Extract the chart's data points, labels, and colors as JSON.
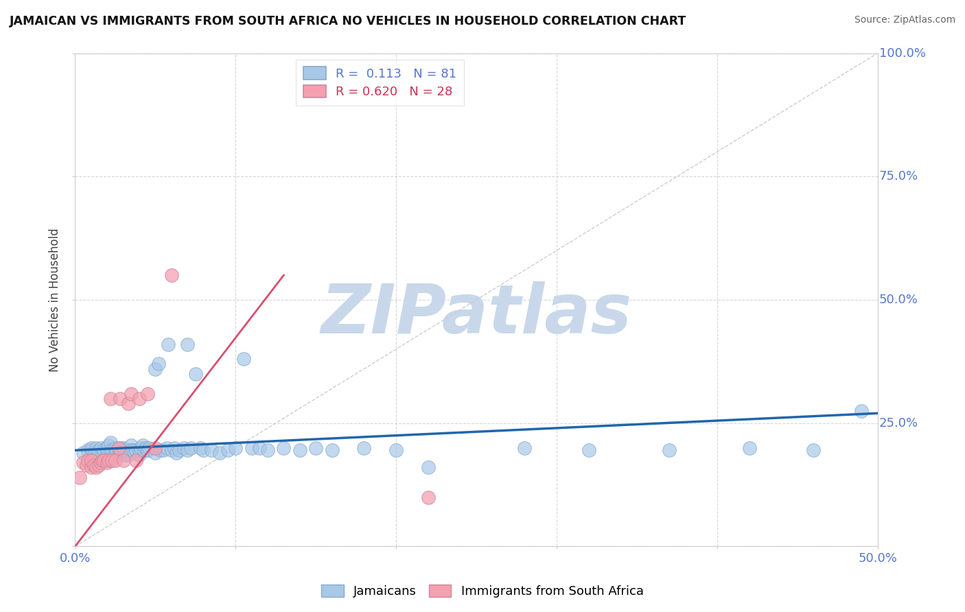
{
  "title": "JAMAICAN VS IMMIGRANTS FROM SOUTH AFRICA NO VEHICLES IN HOUSEHOLD CORRELATION CHART",
  "source_text": "Source: ZipAtlas.com",
  "ylabel": "No Vehicles in Household",
  "xlim": [
    0.0,
    0.5
  ],
  "ylim": [
    0.0,
    1.0
  ],
  "blue_R": 0.113,
  "blue_N": 81,
  "pink_R": 0.62,
  "pink_N": 28,
  "blue_color": "#a8c8e8",
  "pink_color": "#f4a0b0",
  "blue_line_color": "#2166ac",
  "pink_line_color": "#d94f6e",
  "ref_line_color": "#c8c8c8",
  "watermark": "ZIPatlas",
  "watermark_color": "#c8d8ea",
  "legend_label_blue": "Jamaicans",
  "legend_label_pink": "Immigrants from South Africa",
  "tick_color": "#5577cc",
  "blue_scatter_x": [
    0.005,
    0.008,
    0.01,
    0.01,
    0.012,
    0.013,
    0.015,
    0.016,
    0.017,
    0.018,
    0.02,
    0.02,
    0.021,
    0.022,
    0.022,
    0.023,
    0.024,
    0.025,
    0.025,
    0.026,
    0.027,
    0.028,
    0.028,
    0.03,
    0.03,
    0.031,
    0.032,
    0.033,
    0.035,
    0.035,
    0.036,
    0.037,
    0.038,
    0.04,
    0.04,
    0.041,
    0.042,
    0.043,
    0.044,
    0.045,
    0.045,
    0.046,
    0.05,
    0.05,
    0.052,
    0.053,
    0.055,
    0.057,
    0.058,
    0.06,
    0.062,
    0.063,
    0.065,
    0.068,
    0.07,
    0.07,
    0.072,
    0.075,
    0.078,
    0.08,
    0.085,
    0.09,
    0.095,
    0.1,
    0.105,
    0.11,
    0.115,
    0.12,
    0.13,
    0.14,
    0.15,
    0.16,
    0.18,
    0.2,
    0.22,
    0.28,
    0.32,
    0.37,
    0.42,
    0.46,
    0.49
  ],
  "blue_scatter_y": [
    0.19,
    0.195,
    0.195,
    0.2,
    0.185,
    0.2,
    0.195,
    0.2,
    0.185,
    0.195,
    0.195,
    0.2,
    0.205,
    0.195,
    0.21,
    0.195,
    0.185,
    0.19,
    0.2,
    0.195,
    0.185,
    0.19,
    0.2,
    0.195,
    0.2,
    0.185,
    0.195,
    0.185,
    0.205,
    0.195,
    0.195,
    0.19,
    0.195,
    0.185,
    0.195,
    0.2,
    0.205,
    0.195,
    0.2,
    0.195,
    0.195,
    0.2,
    0.19,
    0.36,
    0.37,
    0.195,
    0.195,
    0.2,
    0.41,
    0.195,
    0.2,
    0.19,
    0.195,
    0.2,
    0.41,
    0.195,
    0.2,
    0.35,
    0.2,
    0.195,
    0.195,
    0.19,
    0.195,
    0.2,
    0.38,
    0.2,
    0.2,
    0.195,
    0.2,
    0.195,
    0.2,
    0.195,
    0.2,
    0.195,
    0.16,
    0.2,
    0.195,
    0.195,
    0.2,
    0.195,
    0.275
  ],
  "pink_scatter_x": [
    0.003,
    0.005,
    0.007,
    0.008,
    0.01,
    0.01,
    0.012,
    0.013,
    0.015,
    0.016,
    0.017,
    0.018,
    0.02,
    0.021,
    0.022,
    0.023,
    0.025,
    0.027,
    0.028,
    0.03,
    0.033,
    0.035,
    0.038,
    0.04,
    0.045,
    0.05,
    0.06,
    0.22
  ],
  "pink_scatter_y": [
    0.14,
    0.17,
    0.165,
    0.175,
    0.16,
    0.175,
    0.165,
    0.16,
    0.165,
    0.17,
    0.175,
    0.175,
    0.17,
    0.175,
    0.3,
    0.175,
    0.175,
    0.2,
    0.3,
    0.175,
    0.29,
    0.31,
    0.175,
    0.3,
    0.31,
    0.2,
    0.55,
    0.1
  ],
  "blue_line_x0": 0.0,
  "blue_line_y0": 0.195,
  "blue_line_x1": 0.5,
  "blue_line_y1": 0.27,
  "pink_line_x0": 0.0,
  "pink_line_y0": 0.0,
  "pink_line_x1": 0.13,
  "pink_line_y1": 0.55
}
